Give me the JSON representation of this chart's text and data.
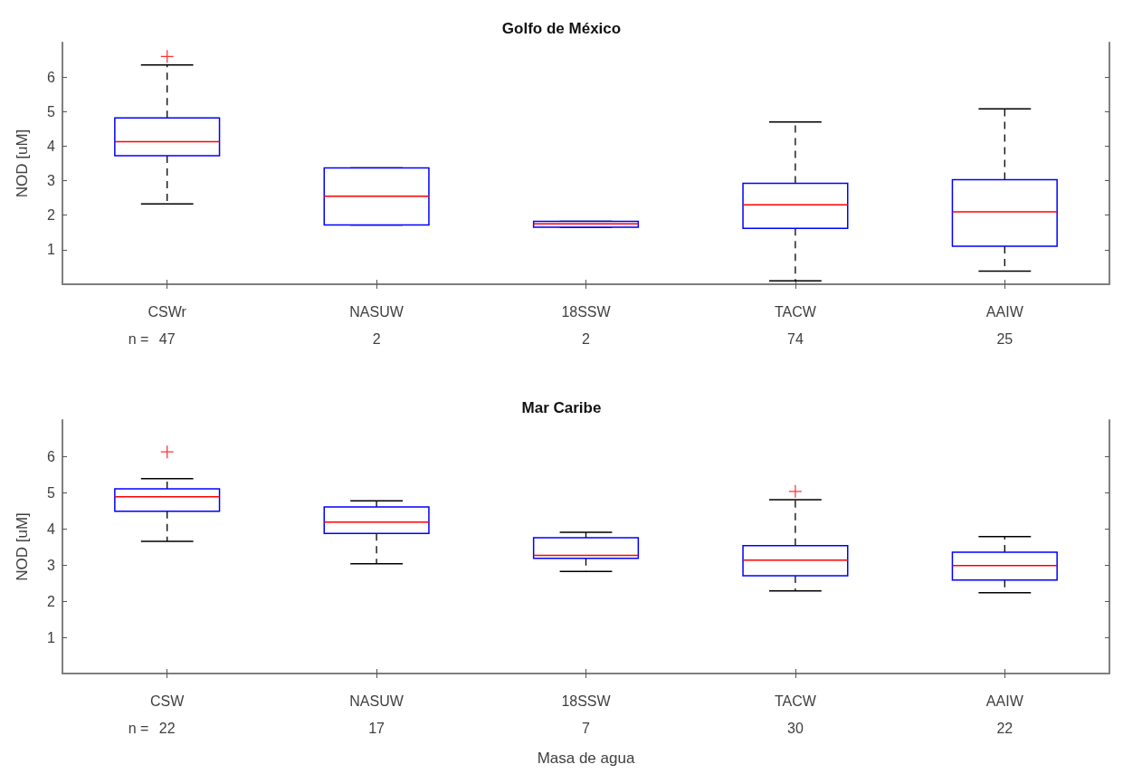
{
  "chart_data": [
    {
      "type": "box",
      "title": "Golfo de México",
      "ylabel": "NOD [uM]",
      "categories": [
        "CSWr",
        "NASUW",
        "18SSW",
        "TACW",
        "AAIW"
      ],
      "ylim": [
        0,
        7
      ],
      "yticks": [
        1,
        2,
        3,
        4,
        5,
        6
      ],
      "grid": false,
      "series": [
        {
          "color": "#0000ff",
          "boxes": [
            {
              "low": 2.33,
              "q1": 3.72,
              "median": 4.13,
              "q3": 4.82,
              "high": 6.35,
              "outliers": [
                6.6
              ]
            },
            {
              "low": 1.72,
              "q1": 1.72,
              "median": 2.55,
              "q3": 3.37,
              "high": 3.37
            },
            {
              "low": 1.65,
              "q1": 1.65,
              "median": 1.75,
              "q3": 1.82,
              "high": 1.82
            },
            {
              "low": 0.1,
              "q1": 1.62,
              "median": 2.3,
              "q3": 2.92,
              "high": 4.7
            },
            {
              "low": 0.38,
              "q1": 1.1,
              "median": 2.1,
              "q3": 3.03,
              "high": 5.08
            }
          ]
        }
      ],
      "annotations": [
        "n =",
        "47",
        "2",
        "2",
        "74",
        "25"
      ]
    },
    {
      "type": "box",
      "title": "Mar Caribe",
      "ylabel": "NOD [uM]",
      "xlabel": "Masa de agua",
      "categories": [
        "CSW",
        "NASUW",
        "18SSW",
        "TACW",
        "AAIW"
      ],
      "ylim": [
        0,
        7
      ],
      "yticks": [
        1,
        2,
        3,
        4,
        5,
        6
      ],
      "grid": false,
      "series": [
        {
          "color": "#0000ff",
          "boxes": [
            {
              "low": 3.65,
              "q1": 4.48,
              "median": 4.88,
              "q3": 5.1,
              "high": 5.38,
              "outliers": [
                6.12
              ]
            },
            {
              "low": 3.03,
              "q1": 3.87,
              "median": 4.18,
              "q3": 4.6,
              "high": 4.77
            },
            {
              "low": 2.82,
              "q1": 3.18,
              "median": 3.26,
              "q3": 3.75,
              "high": 3.9
            },
            {
              "low": 2.28,
              "q1": 2.7,
              "median": 3.13,
              "q3": 3.53,
              "high": 4.8,
              "outliers": [
                5.03
              ]
            },
            {
              "low": 2.23,
              "q1": 2.58,
              "median": 2.98,
              "q3": 3.35,
              "high": 3.78
            }
          ]
        }
      ],
      "annotations": [
        "n =",
        "22",
        "17",
        "7",
        "30",
        "22"
      ]
    }
  ]
}
